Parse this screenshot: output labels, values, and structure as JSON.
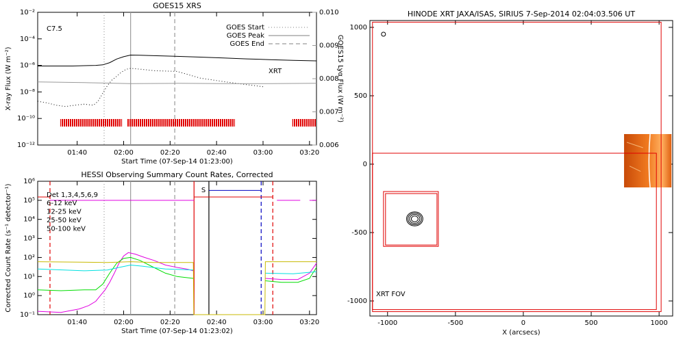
{
  "chart_data": [
    {
      "type": "line",
      "title": "GOES15 XRS",
      "xlabel": "Start Time (07-Sep-14 01:23:00)",
      "ylabel": "X-ray Flux (W m⁻²)",
      "y2label": "GOES15 Lyα Flux (W m⁻²)",
      "xlim": [
        0,
        120
      ],
      "xticks": [
        {
          "value": 17,
          "label": "01:40"
        },
        {
          "value": 37,
          "label": "02:00"
        },
        {
          "value": 57,
          "label": "02:20"
        },
        {
          "value": 77,
          "label": "02:40"
        },
        {
          "value": 97,
          "label": "03:00"
        },
        {
          "value": 117,
          "label": "03:20"
        }
      ],
      "ylog": true,
      "ylim": [
        1e-12,
        0.01
      ],
      "yticks": [
        {
          "value": 1e-12,
          "label": "10⁻¹²"
        },
        {
          "value": 1e-10,
          "label": "10⁻¹⁰"
        },
        {
          "value": 1e-08,
          "label": "10⁻⁸"
        },
        {
          "value": 1e-06,
          "label": "10⁻⁶"
        },
        {
          "value": 0.0001,
          "label": "10⁻⁴"
        },
        {
          "value": 0.01,
          "label": "10⁻²"
        }
      ],
      "y2lim": [
        0.006,
        0.01
      ],
      "y2ticks": [
        0.006,
        0.007,
        0.008,
        0.009,
        {
          "value": 0.01,
          "label": "0.010"
        }
      ],
      "series": [
        {
          "color": "#000000",
          "dash": "solid",
          "x": [
            0,
            8,
            15,
            20,
            25,
            28,
            31,
            34,
            37,
            40,
            44,
            50,
            60,
            70,
            80,
            90,
            100,
            110,
            120
          ],
          "values": [
            9e-07,
            9e-07,
            9e-07,
            9.5e-07,
            1e-06,
            1.1e-06,
            1.6e-06,
            3e-06,
            4.5e-06,
            6e-06,
            5.8e-06,
            5.4e-06,
            4.8e-06,
            4.2e-06,
            3.6e-06,
            3.1e-06,
            2.7e-06,
            2.4e-06,
            2.2e-06
          ]
        },
        {
          "color": "#000000",
          "dash": "dotted",
          "x": [
            0,
            4,
            8,
            12,
            16,
            20,
            24,
            26,
            28,
            30,
            32,
            34,
            36,
            38,
            40,
            45,
            50,
            60,
            70,
            80,
            90,
            97
          ],
          "values": [
            2e-09,
            1.5e-09,
            1e-09,
            8e-10,
            1e-09,
            1.2e-09,
            1e-09,
            2e-09,
            8e-09,
            3e-08,
            8e-08,
            1.5e-07,
            3e-07,
            5e-07,
            6e-07,
            5e-07,
            4e-07,
            3.5e-07,
            1.1e-07,
            6e-08,
            3.5e-08,
            2.5e-08
          ]
        },
        {
          "color": "#999999",
          "dash": "solid",
          "axis": "y2",
          "x": [
            0,
            20,
            40,
            60,
            80,
            100,
            120
          ],
          "values": [
            0.0079,
            0.00788,
            0.00785,
            0.00786,
            0.00785,
            0.00785,
            0.00786
          ]
        }
      ],
      "event_color": "#999999",
      "events": [
        {
          "name": "GOES Start",
          "x": 28.6,
          "dash": "dotted"
        },
        {
          "name": "GOES Peak",
          "x": 40,
          "dash": "solid"
        },
        {
          "name": "GOES End",
          "x": 59,
          "dash": "dashed"
        }
      ],
      "legend": "top-right",
      "xrt_color": "#e00000",
      "xrt_intervals": [
        [
          9.7,
          36.3
        ],
        [
          38.6,
          84.9
        ],
        [
          109.6,
          120
        ]
      ],
      "annotations": [
        {
          "text": "C7.5",
          "color": "#000000"
        },
        {
          "text": "XRT",
          "color": "#e00000"
        }
      ]
    },
    {
      "type": "line",
      "title": "HESSI Observing Summary Count Rates, Corrected",
      "xlabel": "Start Time (07-Sep-14 01:23:02)",
      "ylabel": "Corrected Count Rate (s⁻¹ detector⁻¹)",
      "xlim": [
        0,
        120
      ],
      "xticks": [
        {
          "value": 17,
          "label": "01:40"
        },
        {
          "value": 37,
          "label": "02:00"
        },
        {
          "value": 57,
          "label": "02:20"
        },
        {
          "value": 77,
          "label": "02:40"
        },
        {
          "value": 97,
          "label": "03:00"
        },
        {
          "value": 117,
          "label": "03:20"
        }
      ],
      "ylog": true,
      "ylim": [
        0.1,
        1000000
      ],
      "yticks": [
        {
          "value": 0.1,
          "label": "10⁻¹"
        },
        {
          "value": 1,
          "label": "10⁰"
        },
        {
          "value": 10,
          "label": "10¹"
        },
        {
          "value": 100,
          "label": "10²"
        },
        {
          "value": 1000,
          "label": "10³"
        },
        {
          "value": 10000,
          "label": "10⁴"
        },
        {
          "value": 100000,
          "label": "10⁵"
        },
        {
          "value": 1000000,
          "label": "10⁶"
        }
      ],
      "legend": "top-left",
      "legend_title": "Det 1,3,4,5,6,9",
      "series": [
        {
          "name": "6-12 keV",
          "color": "#e000e0",
          "x": [
            0,
            10,
            18,
            22,
            25,
            27,
            29,
            31,
            33,
            35,
            37,
            39,
            42,
            46,
            50,
            55,
            60,
            64,
            67,
            67.5,
            98,
            105,
            112,
            117,
            120
          ],
          "values": [
            0.15,
            0.13,
            0.2,
            0.3,
            0.5,
            1,
            2,
            5,
            15,
            50,
            120,
            180,
            150,
            100,
            70,
            40,
            30,
            25,
            20,
            null,
            8,
            7,
            7,
            15,
            50
          ]
        },
        {
          "name": "12-25 keV",
          "color": "#00dd00",
          "x": [
            0,
            10,
            20,
            25,
            28,
            31,
            34,
            37,
            40,
            44,
            50,
            55,
            60,
            67,
            67.5,
            98,
            105,
            112,
            117,
            120
          ],
          "values": [
            2,
            1.8,
            2,
            2,
            4,
            15,
            50,
            90,
            100,
            70,
            30,
            15,
            10,
            8,
            null,
            6,
            5,
            5,
            8,
            30
          ]
        },
        {
          "name": "25-50 keV",
          "color": "#00e0e0",
          "x": [
            0,
            20,
            30,
            35,
            40,
            45,
            55,
            67,
            67.5,
            98,
            110,
            120
          ],
          "values": [
            25,
            20,
            22,
            30,
            40,
            35,
            25,
            22,
            null,
            15,
            14,
            18
          ]
        },
        {
          "name": "50-100 keV",
          "color": "#c8b900",
          "x": [
            0,
            30,
            40,
            50,
            67,
            67.2,
            97.8,
            98,
            120
          ],
          "values": [
            60,
            55,
            60,
            55,
            55,
            0.1,
            0.1,
            60,
            60
          ]
        }
      ],
      "flags": [
        {
          "color": "#e00000",
          "x": [
            0,
            5.3
          ],
          "values": [
            150000,
            150000
          ]
        },
        {
          "color": "#e000e0",
          "x": [
            5.3,
            67.3
          ],
          "values": [
            100000,
            100000
          ]
        },
        {
          "color": "#e00000",
          "x": [
            67.3,
            101.2
          ],
          "values": [
            150000,
            150000
          ]
        },
        {
          "color": "#e000e0",
          "x": [
            103,
            113
          ],
          "values": [
            100000,
            100000
          ]
        },
        {
          "color": "#e000e0",
          "x": [
            117,
            120
          ],
          "values": [
            100000,
            100000
          ]
        },
        {
          "color": "#0000c0",
          "x": [
            73.7,
            96.2
          ],
          "values": [
            330000,
            330000
          ]
        }
      ],
      "vlines": [
        {
          "x": 28.6,
          "color": "#999999",
          "dash": "dotted"
        },
        {
          "x": 40,
          "color": "#999999",
          "dash": "solid"
        },
        {
          "x": 59,
          "color": "#999999",
          "dash": "dashed"
        },
        {
          "x": 5.3,
          "color": "#e00000",
          "dash": "dashed"
        },
        {
          "x": 67.3,
          "color": "#e00000",
          "dash": "solid"
        },
        {
          "x": 101.2,
          "color": "#e00000",
          "dash": "dashed"
        },
        {
          "x": 73.7,
          "color": "#000000",
          "dash": "solid"
        },
        {
          "x": 96.2,
          "color": "#0000c0",
          "dash": "dashed"
        }
      ],
      "annotations": [
        {
          "text": "S",
          "color": "#0000c0"
        }
      ]
    },
    {
      "type": "image",
      "title": "HINODE XRT JAXA/ISAS, SIRIUS  7-Sep-2014 02:04:03.506 UT",
      "xlabel": "X (arcsecs)",
      "xlim": [
        -1130,
        1100
      ],
      "ylim": [
        -1110,
        1050
      ],
      "xticks": [
        -1000,
        -500,
        0,
        500,
        1000
      ],
      "yticks": [
        -1000,
        -500,
        0,
        500,
        1000
      ],
      "box_color": "#e00000",
      "boxes": [
        [
          -1111,
          1015,
          -1078,
          1038
        ],
        [
          -1111,
          980,
          -1063,
          80
        ],
        [
          -1030,
          -626,
          -601,
          -200
        ],
        [
          -1015,
          -636,
          -591,
          -215
        ]
      ],
      "image_extent": [
        742,
        1091,
        -170,
        220
      ],
      "contour_center": [
        -800,
        -400
      ],
      "contour_radii": [
        25,
        38,
        50,
        60
      ],
      "marker": [
        -1030,
        950
      ],
      "annotations": [
        {
          "text": "XRT FOV",
          "color": "#e00000"
        }
      ]
    }
  ]
}
